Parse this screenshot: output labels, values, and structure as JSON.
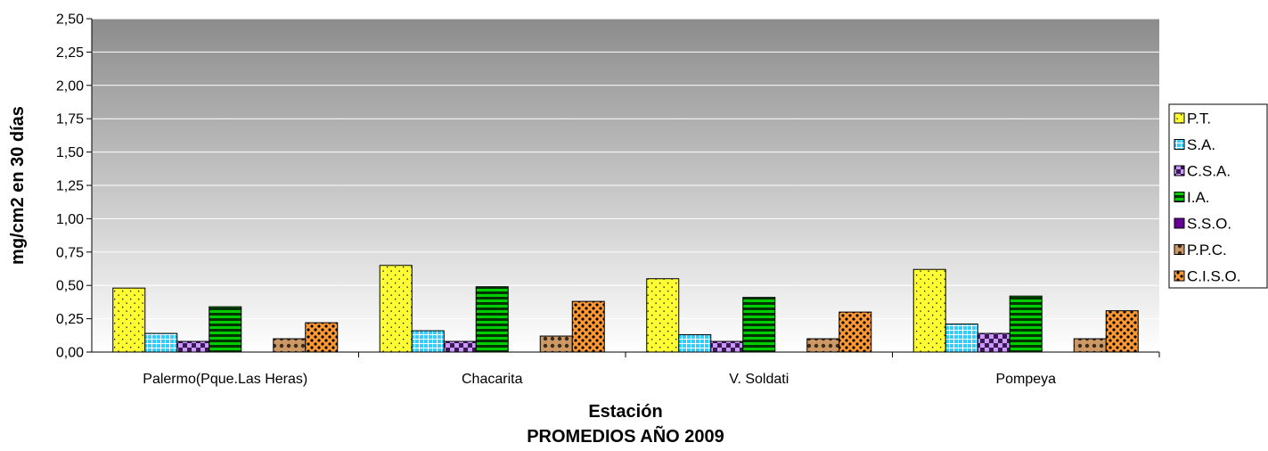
{
  "chart_data": {
    "type": "bar",
    "xlabel": "Estación",
    "ylabel": "mg/cm2 en 30 días",
    "footer": "PROMEDIOS AÑO 2009",
    "ylim": [
      0,
      2.5
    ],
    "yticks": [
      "0,00",
      "0,25",
      "0,50",
      "0,75",
      "1,00",
      "1,25",
      "1,50",
      "1,75",
      "2,00",
      "2,25",
      "2,50"
    ],
    "grid": true,
    "legend_position": "right",
    "categories": [
      "Palermo(Pque.Las Heras)",
      "Chacarita",
      "V. Soldati",
      "Pompeya"
    ],
    "series": [
      {
        "name": "P.T.",
        "values": [
          0.48,
          0.65,
          0.55,
          0.62
        ],
        "color": "#ffff33",
        "pattern": "dots"
      },
      {
        "name": "S.A.",
        "values": [
          0.14,
          0.16,
          0.13,
          0.21
        ],
        "color": "#33ccff",
        "pattern": "grid"
      },
      {
        "name": "C.S.A.",
        "values": [
          0.08,
          0.08,
          0.08,
          0.14
        ],
        "color": "#cc99ff",
        "pattern": "checker"
      },
      {
        "name": "I.A.",
        "values": [
          0.34,
          0.49,
          0.41,
          0.42
        ],
        "color": "#00cc00",
        "pattern": "hstripes"
      },
      {
        "name": "S.S.O.",
        "values": [
          0.0,
          0.0,
          0.0,
          0.0
        ],
        "color": "#660099",
        "pattern": "solid"
      },
      {
        "name": "P.P.C.",
        "values": [
          0.1,
          0.12,
          0.1,
          0.1
        ],
        "color": "#cc9966",
        "pattern": "circles"
      },
      {
        "name": "C.I.S.O.",
        "values": [
          0.22,
          0.38,
          0.3,
          0.31
        ],
        "color": "#ff9933",
        "pattern": "spots"
      }
    ]
  }
}
